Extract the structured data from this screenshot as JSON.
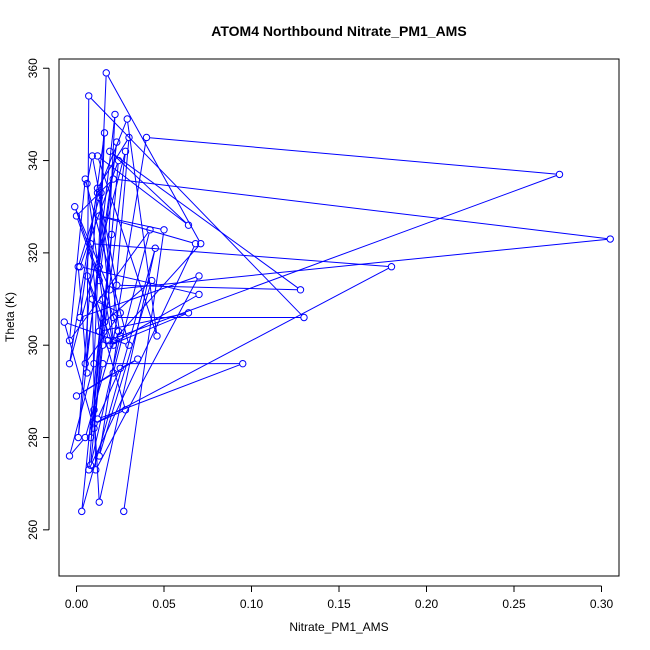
{
  "chart_data": {
    "type": "line",
    "title": "ATOM4 Northbound Nitrate_PM1_AMS",
    "xlabel": "Nitrate_PM1_AMS",
    "ylabel": "Theta (K)",
    "xlim": [
      -0.01,
      0.31
    ],
    "ylim": [
      250,
      362
    ],
    "xticks": [
      0.0,
      0.05,
      0.1,
      0.15,
      0.2,
      0.25,
      0.3
    ],
    "xtick_labels": [
      "0.00",
      "0.05",
      "0.10",
      "0.15",
      "0.20",
      "0.25",
      "0.30"
    ],
    "yticks": [
      260,
      280,
      300,
      320,
      340,
      360
    ],
    "ytick_labels": [
      "260",
      "280",
      "300",
      "320",
      "340",
      "360"
    ],
    "grid": false,
    "marker": "open-circle",
    "colors": {
      "series": "#0000ff",
      "axes": "#000000",
      "background": "#ffffff"
    },
    "series": [
      {
        "x": [
          0.027,
          0.05,
          0.013,
          0.068,
          0.007,
          0.015,
          0.003,
          0.045,
          0.013,
          0.01,
          0.02,
          0.008,
          0.015,
          0.095,
          0.012,
          0.025,
          0.035,
          0.0,
          0.021,
          0.042,
          -0.004,
          0.005,
          0.03,
          -0.007,
          0.01,
          0.024,
          0.002,
          0.07,
          0.019,
          0.064,
          0.013,
          0.008,
          0.18,
          0.01,
          0.028,
          0.006,
          0.021,
          0.013,
          0.016,
          0.002,
          0.07,
          0.011,
          0.009,
          0.025,
          0.005,
          0.023,
          0.013,
          0.0,
          0.021,
          0.305,
          0.019,
          -0.001,
          0.024,
          0.013,
          0.043,
          0.016,
          0.022,
          0.001,
          0.012,
          0.029,
          0.046,
          0.012,
          0.064,
          0.019,
          0.128,
          0.023,
          0.009,
          0.006,
          0.018,
          0.276,
          0.04,
          0.021,
          0.005,
          -0.004,
          0.01,
          0.017,
          0.071,
          0.021,
          0.013,
          0.025,
          0.008,
          0.015,
          0.028,
          -0.004,
          0.012,
          0.03,
          0.021,
          0.13,
          0.007,
          0.006,
          0.001,
          0.014
        ],
        "y": [
          264.0,
          325.0,
          328.0,
          322.0,
          273.0,
          310.0,
          264.0,
          321.0,
          266.0,
          286.0,
          324.0,
          280.0,
          296.0,
          296.0,
          284.0,
          295.0,
          297.0,
          289.0,
          294.0,
          325.0,
          301.0,
          336.0,
          300.0,
          305.0,
          282.0,
          340.0,
          317.0,
          311.0,
          300.0,
          307.0,
          303.0,
          322.0,
          317.0,
          283.0,
          286.0,
          315.0,
          300.0,
          317.0,
          346.0,
          306.0,
          315.0,
          273.0,
          310.0,
          307.0,
          296.0,
          344.0,
          314.0,
          328.0,
          336.0,
          323.0,
          312.0,
          330.0,
          303.0,
          276.0,
          314.0,
          305.0,
          350.0,
          280.0,
          333.0,
          349.0,
          302.0,
          341.0,
          326.0,
          342.0,
          312.0,
          313.0,
          341.0,
          335.0,
          301.0,
          337.0,
          345.0,
          301.0,
          280.0,
          276.0,
          296.0,
          359.0,
          322.0,
          301.0,
          332.0,
          302.0,
          274.0,
          300.0,
          342.0,
          296.0,
          334.0,
          345.0,
          306.0,
          306.0,
          354.0,
          294.0,
          317.0,
          333.0
        ]
      }
    ]
  }
}
